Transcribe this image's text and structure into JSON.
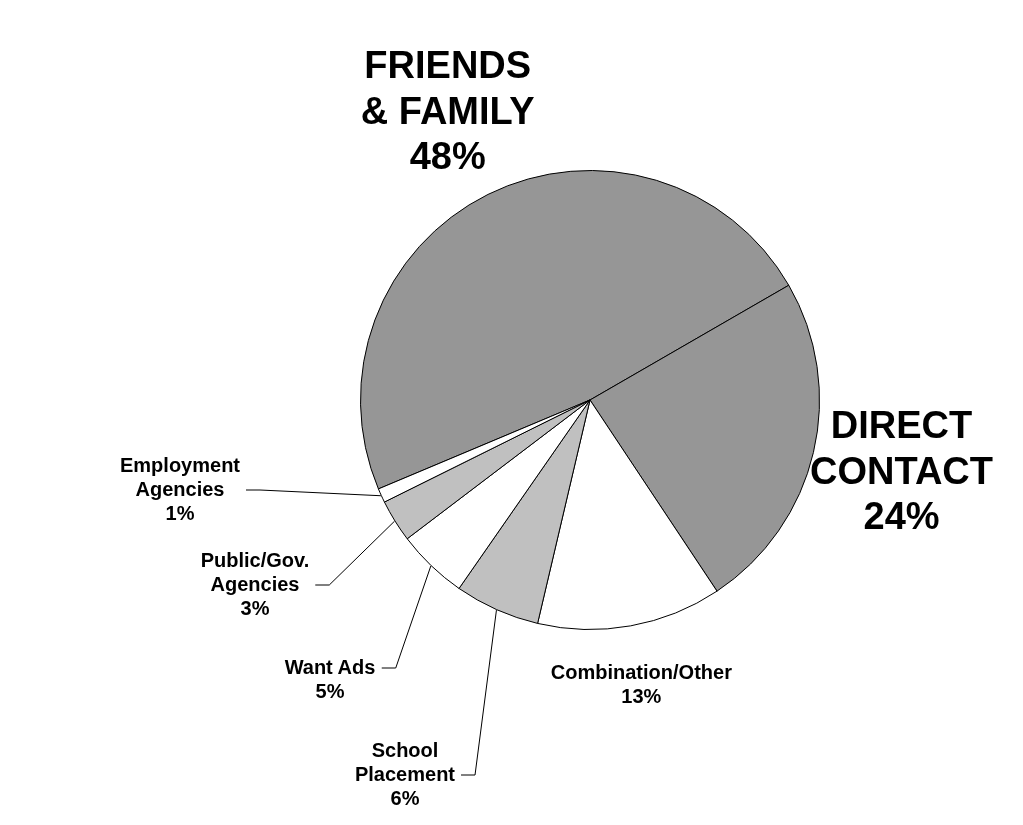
{
  "chart_data": {
    "type": "pie",
    "categories": [
      "FRIENDS & FAMILY",
      "DIRECT CONTACT",
      "Combination/Other",
      "School Placement",
      "Want Ads",
      "Public/Gov. Agencies",
      "Employment Agencies"
    ],
    "values": [
      48,
      24,
      13,
      6,
      5,
      3,
      1
    ],
    "value_labels": [
      "48%",
      "24%",
      "13%",
      "6%",
      "5%",
      "3%",
      "1%"
    ],
    "colors": [
      "#969696",
      "#969696",
      "#ffffff",
      "#c0c0c0",
      "#ffffff",
      "#c0c0c0",
      "#ffffff"
    ],
    "legend": false
  }
}
